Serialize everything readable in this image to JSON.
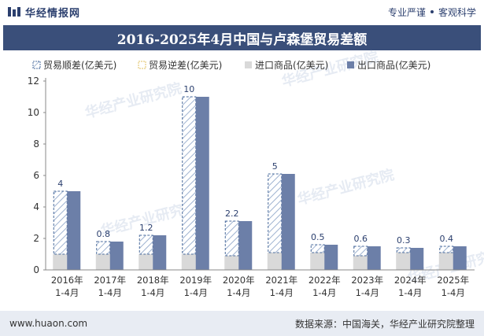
{
  "header": {
    "brand": "华经情报网",
    "tagline_left": "专业严谨",
    "tagline_right": "客观科学"
  },
  "footer": {
    "website": "www.huaon.com",
    "source": "数据来源：中国海关，华经产业研究院整理"
  },
  "watermark": "华经产业研究院",
  "colors": {
    "balance": "#4a6b9c",
    "imports": "#d9d9d9",
    "exports": "#6c7fa8",
    "title_bg": "#3a4f7a"
  },
  "chart_data": {
    "type": "bar",
    "title": "2016-2025年4月中国与卢森堡贸易差额",
    "categories": [
      "2016年\n1-4月",
      "2017年\n1-4月",
      "2018年\n1-4月",
      "2019年\n1-4月",
      "2020年\n1-4月",
      "2021年\n1-4月",
      "2022年\n1-4月",
      "2023年\n1-4月",
      "2024年\n1-4月",
      "2025年\n1-4月"
    ],
    "ylim": [
      0,
      12
    ],
    "yticks": [
      0,
      2,
      4,
      6,
      8,
      10,
      12
    ],
    "grid": false,
    "legend_position": "top",
    "series": [
      {
        "name": "贸易顺差(亿美元)",
        "values": [
          4,
          0.8,
          1.2,
          10,
          2.2,
          5,
          0.5,
          0.6,
          0.3,
          0.4
        ],
        "labels": [
          "4",
          "0.8",
          "1.2",
          "10",
          "2.2",
          "5",
          "0.5",
          "0.6",
          "0.3",
          "0.4"
        ]
      },
      {
        "name": "贸易逆差(亿美元)",
        "values": [
          0,
          0,
          0,
          0,
          0,
          0,
          0,
          0,
          0,
          0
        ]
      },
      {
        "name": "进口商品(亿美元)",
        "values": [
          1.0,
          1.0,
          1.0,
          1.0,
          0.9,
          1.1,
          1.1,
          0.9,
          1.1,
          1.1
        ]
      },
      {
        "name": "出口商品(亿美元)",
        "values": [
          5.0,
          1.8,
          2.2,
          11.0,
          3.1,
          6.1,
          1.6,
          1.5,
          1.4,
          1.5
        ]
      }
    ]
  }
}
